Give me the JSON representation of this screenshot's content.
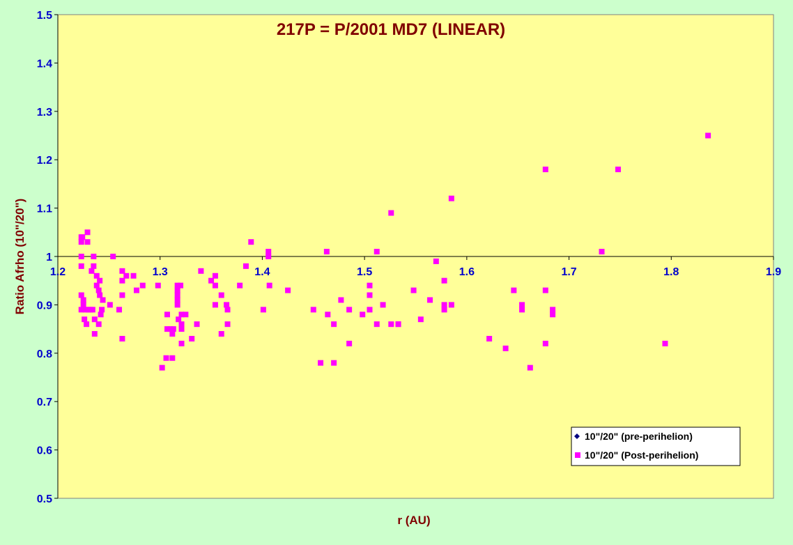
{
  "colors": {
    "page_background": "#ccffcc",
    "plot_background": "#ffff99",
    "title_color": "#800000",
    "axis_label_color": "#800000",
    "tick_label_color": "#0000cc",
    "pre_series_color": "#000080",
    "post_series_color": "#ff00ff"
  },
  "chart_data": {
    "type": "scatter",
    "title": "217P = P/2001 MD7 (LINEAR)",
    "xlabel": "r (AU)",
    "ylabel": "Ratio Afrho (10\"/20\")",
    "xlim": [
      1.2,
      1.9
    ],
    "ylim": [
      0.5,
      1.5
    ],
    "x_axis_crosses_at_y": 1.0,
    "x_ticks": [
      "1.2",
      "1.3",
      "1.4",
      "1.5",
      "1.6",
      "1.7",
      "1.8",
      "1.9"
    ],
    "y_ticks": [
      "0.5",
      "0.6",
      "0.7",
      "0.8",
      "0.9",
      "1",
      "1.1",
      "1.2",
      "1.3",
      "1.4",
      "1.5"
    ],
    "grid": false,
    "legend_position": "bottom-right",
    "series": [
      {
        "name": "10\"/20\" (pre-perihelion)",
        "marker": "diamond",
        "points": []
      },
      {
        "name": "10\"/20\" (Post-perihelion)",
        "marker": "square",
        "points": [
          [
            1.223,
            1.04
          ],
          [
            1.223,
            1.03
          ],
          [
            1.223,
            1.0
          ],
          [
            1.223,
            0.98
          ],
          [
            1.223,
            0.92
          ],
          [
            1.223,
            0.89
          ],
          [
            1.224,
            1.04
          ],
          [
            1.225,
            0.91
          ],
          [
            1.225,
            0.9
          ],
          [
            1.226,
            0.87
          ],
          [
            1.227,
            0.89
          ],
          [
            1.228,
            0.86
          ],
          [
            1.229,
            1.05
          ],
          [
            1.229,
            1.03
          ],
          [
            1.23,
            0.89
          ],
          [
            1.232,
            0.89
          ],
          [
            1.233,
            0.97
          ],
          [
            1.234,
            0.89
          ],
          [
            1.235,
            1.0
          ],
          [
            1.235,
            0.98
          ],
          [
            1.236,
            0.84
          ],
          [
            1.236,
            0.87
          ],
          [
            1.238,
            0.96
          ],
          [
            1.238,
            0.94
          ],
          [
            1.24,
            0.93
          ],
          [
            1.24,
            0.86
          ],
          [
            1.241,
            0.95
          ],
          [
            1.241,
            0.92
          ],
          [
            1.242,
            0.88
          ],
          [
            1.243,
            0.89
          ],
          [
            1.244,
            0.91
          ],
          [
            1.251,
            0.9
          ],
          [
            1.254,
            1.0
          ],
          [
            1.26,
            0.89
          ],
          [
            1.263,
            0.97
          ],
          [
            1.263,
            0.95
          ],
          [
            1.263,
            0.92
          ],
          [
            1.263,
            0.83
          ],
          [
            1.267,
            0.96
          ],
          [
            1.274,
            0.96
          ],
          [
            1.277,
            0.93
          ],
          [
            1.283,
            0.94
          ],
          [
            1.298,
            0.94
          ],
          [
            1.302,
            0.77
          ],
          [
            1.306,
            0.79
          ],
          [
            1.307,
            0.88
          ],
          [
            1.307,
            0.85
          ],
          [
            1.31,
            0.85
          ],
          [
            1.312,
            0.84
          ],
          [
            1.312,
            0.79
          ],
          [
            1.313,
            0.85
          ],
          [
            1.317,
            0.94
          ],
          [
            1.317,
            0.93
          ],
          [
            1.317,
            0.92
          ],
          [
            1.317,
            0.91
          ],
          [
            1.317,
            0.9
          ],
          [
            1.318,
            0.87
          ],
          [
            1.32,
            0.94
          ],
          [
            1.321,
            0.88
          ],
          [
            1.321,
            0.86
          ],
          [
            1.321,
            0.85
          ],
          [
            1.321,
            0.82
          ],
          [
            1.325,
            0.88
          ],
          [
            1.331,
            0.83
          ],
          [
            1.336,
            0.86
          ],
          [
            1.34,
            0.97
          ],
          [
            1.35,
            0.95
          ],
          [
            1.354,
            0.96
          ],
          [
            1.354,
            0.94
          ],
          [
            1.354,
            0.9
          ],
          [
            1.36,
            0.92
          ],
          [
            1.36,
            0.84
          ],
          [
            1.365,
            0.9
          ],
          [
            1.366,
            0.89
          ],
          [
            1.366,
            0.86
          ],
          [
            1.378,
            0.94
          ],
          [
            1.384,
            0.98
          ],
          [
            1.389,
            1.03
          ],
          [
            1.401,
            0.89
          ],
          [
            1.406,
            1.01
          ],
          [
            1.406,
            1.0
          ],
          [
            1.407,
            0.94
          ],
          [
            1.425,
            0.93
          ],
          [
            1.45,
            0.89
          ],
          [
            1.457,
            0.78
          ],
          [
            1.463,
            1.01
          ],
          [
            1.464,
            0.88
          ],
          [
            1.47,
            0.86
          ],
          [
            1.47,
            0.78
          ],
          [
            1.477,
            0.91
          ],
          [
            1.485,
            0.89
          ],
          [
            1.485,
            0.82
          ],
          [
            1.498,
            0.88
          ],
          [
            1.505,
            0.94
          ],
          [
            1.505,
            0.92
          ],
          [
            1.505,
            0.89
          ],
          [
            1.512,
            1.01
          ],
          [
            1.512,
            0.86
          ],
          [
            1.518,
            0.9
          ],
          [
            1.526,
            1.09
          ],
          [
            1.526,
            0.86
          ],
          [
            1.533,
            0.86
          ],
          [
            1.533,
            0.86
          ],
          [
            1.548,
            0.93
          ],
          [
            1.555,
            0.87
          ],
          [
            1.564,
            0.91
          ],
          [
            1.57,
            0.99
          ],
          [
            1.578,
            0.95
          ],
          [
            1.578,
            0.9
          ],
          [
            1.578,
            0.89
          ],
          [
            1.585,
            1.12
          ],
          [
            1.585,
            0.9
          ],
          [
            1.622,
            0.83
          ],
          [
            1.638,
            0.81
          ],
          [
            1.646,
            0.93
          ],
          [
            1.654,
            0.9
          ],
          [
            1.654,
            0.89
          ],
          [
            1.662,
            0.77
          ],
          [
            1.677,
            1.18
          ],
          [
            1.677,
            0.93
          ],
          [
            1.677,
            0.82
          ],
          [
            1.684,
            0.89
          ],
          [
            1.684,
            0.88
          ],
          [
            1.732,
            1.01
          ],
          [
            1.748,
            1.18
          ],
          [
            1.794,
            0.82
          ],
          [
            1.836,
            1.25
          ]
        ]
      }
    ]
  }
}
